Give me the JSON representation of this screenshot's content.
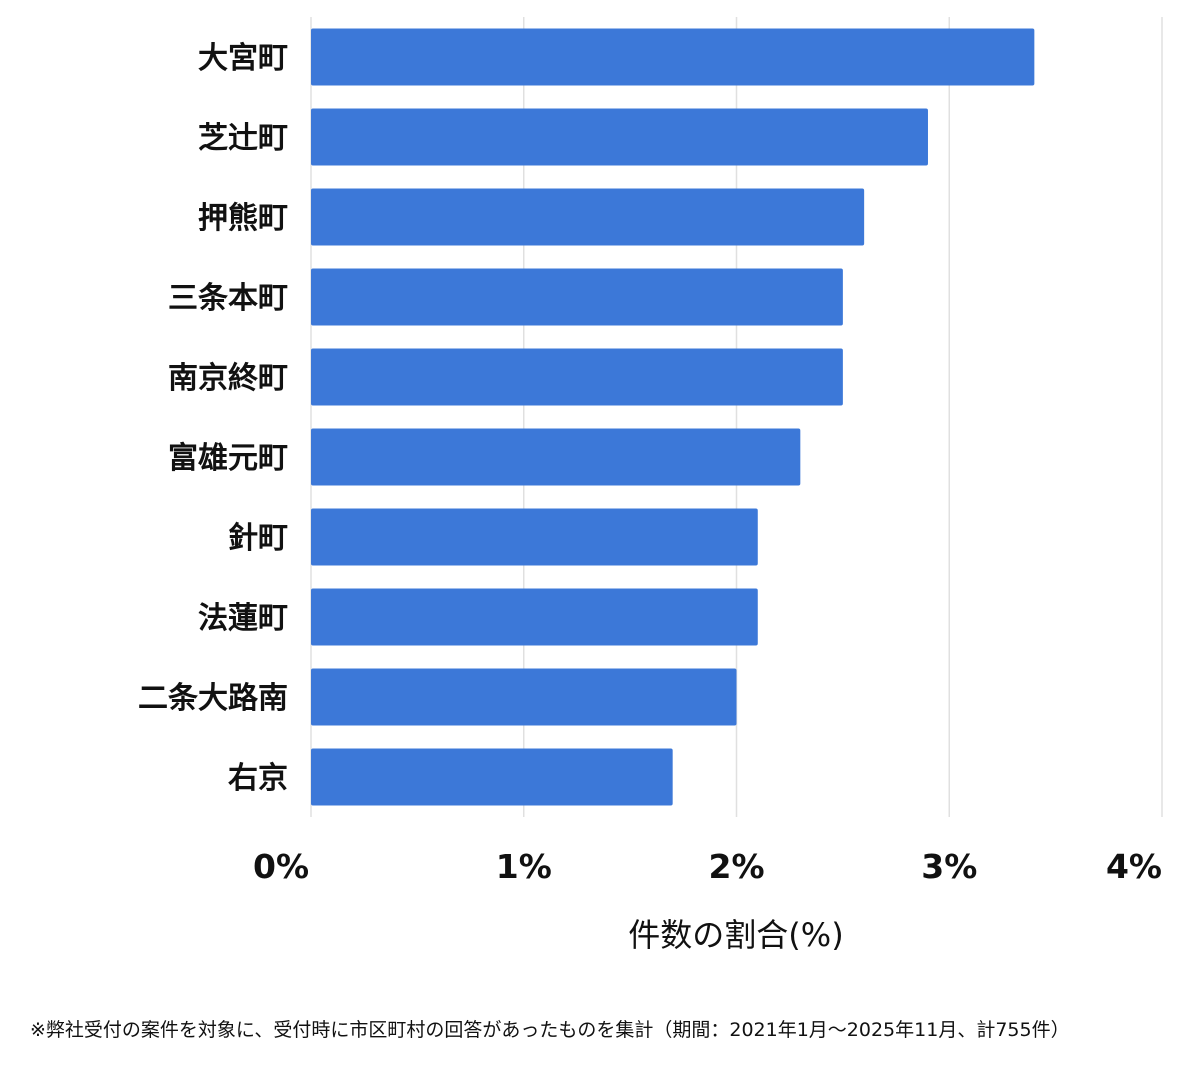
{
  "chart_data": {
    "type": "bar",
    "orientation": "horizontal",
    "categories": [
      "大宮町",
      "芝辻町",
      "押熊町",
      "三条本町",
      "南京終町",
      "富雄元町",
      "針町",
      "法蓮町",
      "二条大路南",
      "右京"
    ],
    "values": [
      3.4,
      2.9,
      2.6,
      2.5,
      2.5,
      2.3,
      2.1,
      2.1,
      2.0,
      1.7
    ],
    "xlim": [
      0,
      4
    ],
    "xticks": [
      "0%",
      "1%",
      "2%",
      "3%",
      "4%"
    ],
    "xlabel": "件数の割合(%)",
    "ylabel": "",
    "grid": "vertical",
    "bar_color": "#3c78d8",
    "grid_color": "#e0e0e0"
  },
  "footnote": "※弊社受付の案件を対象に、受付時に市区町村の回答があったものを集計（期間：2021年1月～2025年11月、計755件）"
}
